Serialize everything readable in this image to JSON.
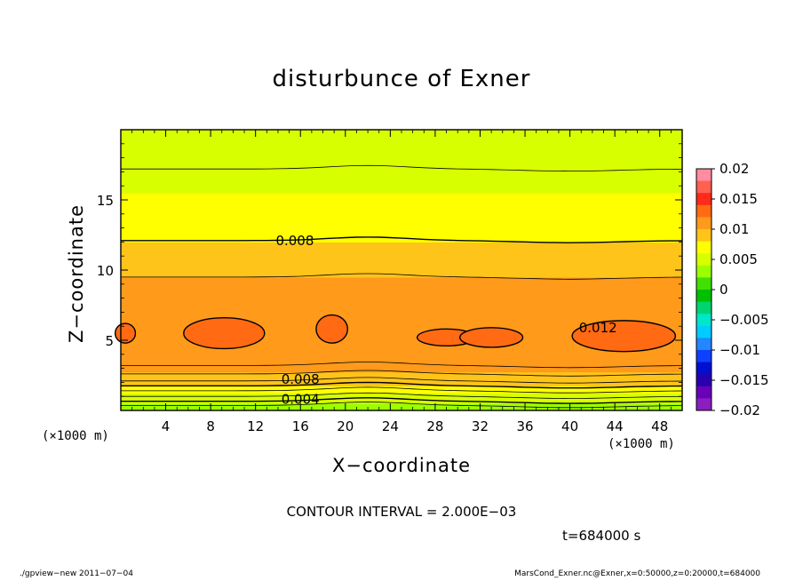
{
  "chart_data": {
    "type": "heatmap",
    "title": "disturbunce of Exner",
    "xlabel": "X−coordinate",
    "ylabel": "Z−coordinate",
    "x_units": "(×1000 m)",
    "y_units": "(×1000 m)",
    "xlim": [
      0,
      50
    ],
    "ylim": [
      0,
      20
    ],
    "x_ticks": [
      4,
      8,
      12,
      16,
      20,
      24,
      28,
      32,
      36,
      40,
      44,
      48
    ],
    "y_ticks": [
      5,
      10,
      15
    ],
    "grid": false,
    "vertical_profile": {
      "z": [
        0.0,
        0.5,
        1.0,
        1.5,
        2.0,
        2.5,
        3.0,
        3.5,
        4.0,
        5.0,
        6.0,
        7.0,
        8.0,
        9.0,
        10.0,
        11.0,
        12.0,
        13.0,
        14.0,
        15.0,
        16.0,
        17.0,
        18.0,
        19.0,
        20.0
      ],
      "value": [
        0.0025,
        0.004,
        0.0055,
        0.007,
        0.0085,
        0.0095,
        0.0105,
        0.011,
        0.0115,
        0.0119,
        0.0119,
        0.0117,
        0.0112,
        0.0105,
        0.0097,
        0.009,
        0.0081,
        0.0072,
        0.0066,
        0.0062,
        0.0058,
        0.0054,
        0.005,
        0.0046,
        0.0042
      ]
    },
    "contour_labels": [
      {
        "text": "0.008",
        "x": 15.5,
        "z": 12.1
      },
      {
        "text": "0.012",
        "x": 42.5,
        "z": 5.9
      },
      {
        "text": "0.008",
        "x": 16.0,
        "z": 2.2
      },
      {
        "text": "0.004",
        "x": 16.0,
        "z": 0.8
      }
    ],
    "colorbar": {
      "ticks": [
        "0.02",
        "0.015",
        "0.01",
        "0.005",
        "0",
        "−0.005",
        "−0.01",
        "−0.015",
        "−0.02"
      ],
      "colors": [
        "#ff8ca0",
        "#ff6050",
        "#ff2a1a",
        "#ff6a12",
        "#ff9a1a",
        "#ffc41a",
        "#ffff00",
        "#d8ff00",
        "#9cff00",
        "#40e000",
        "#00c000",
        "#00d470",
        "#00e6c8",
        "#00ccff",
        "#2288ff",
        "#1040ff",
        "#0010d0",
        "#2800b0",
        "#6a00b8",
        "#8a1ec0"
      ]
    },
    "contour_interval": "CONTOUR INTERVAL = 2.000E−03",
    "time": "t=684000 s"
  },
  "footer": {
    "left": "./gpview−new   2011−07−04",
    "right": "MarsCond_Exner.nc@Exner,x=0:50000,z=0:20000,t=684000"
  }
}
